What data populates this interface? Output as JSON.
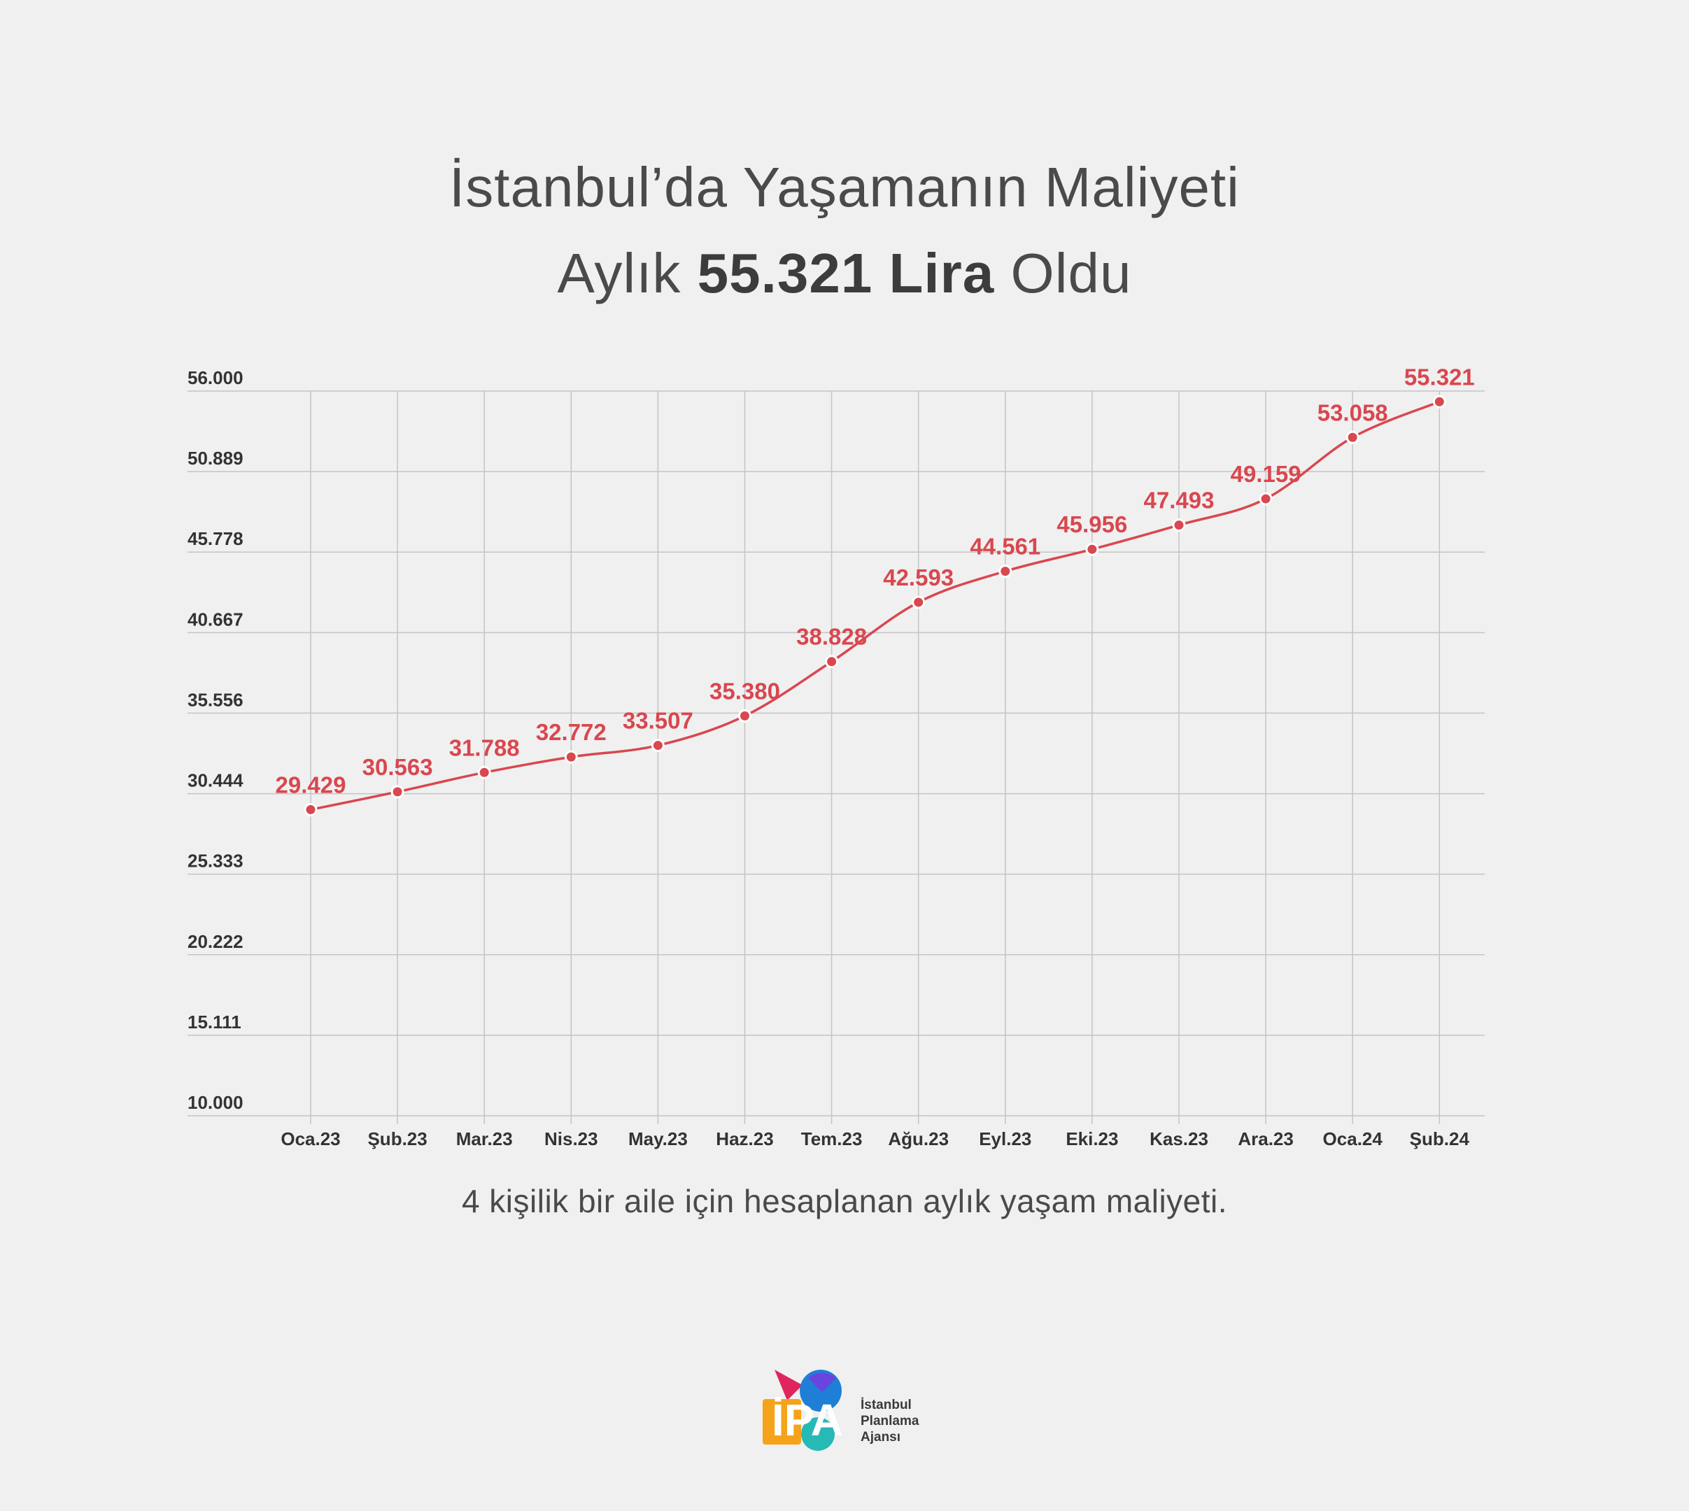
{
  "header": {
    "title_line1": "İstanbul’da Yaşamanın Maliyeti",
    "title_line2_prefix": "Aylık ",
    "title_line2_bold": "55.321 Lira",
    "title_line2_suffix": " Oldu"
  },
  "footer": {
    "caption": "4 kişilik bir aile için hesaplanan aylık yaşam maliyeti."
  },
  "logo": {
    "mark": "İPA",
    "line1": "İstanbul",
    "line2": "Planlama",
    "line3": "Ajansı"
  },
  "colors": {
    "line": "#d9474f",
    "grid": "#c4c4c4",
    "background": "#f0f0f0"
  },
  "chart_data": {
    "type": "line",
    "categories": [
      "Oca.23",
      "Şub.23",
      "Mar.23",
      "Nis.23",
      "May.23",
      "Haz.23",
      "Tem.23",
      "Ağu.23",
      "Eyl.23",
      "Eki.23",
      "Kas.23",
      "Ara.23",
      "Oca.24",
      "Şub.24"
    ],
    "values": [
      29429,
      30563,
      31788,
      32772,
      33507,
      35380,
      38828,
      42593,
      44561,
      45956,
      47493,
      49159,
      53058,
      55321
    ],
    "value_labels": [
      "29.429",
      "30.563",
      "31.788",
      "32.772",
      "33.507",
      "35.380",
      "38.828",
      "42.593",
      "44.561",
      "45.956",
      "47.493",
      "49.159",
      "53.058",
      "55.321"
    ],
    "ylim": [
      10000,
      56000
    ],
    "yticks": [
      10000,
      15111,
      20222,
      25333,
      30444,
      35556,
      40667,
      45778,
      50889,
      56000
    ],
    "ytick_labels": [
      "10.000",
      "15.111",
      "20.222",
      "25.333",
      "30.444",
      "35.556",
      "40.667",
      "45.778",
      "50.889",
      "56.000"
    ],
    "grid": true,
    "xlabel": "",
    "ylabel": ""
  }
}
